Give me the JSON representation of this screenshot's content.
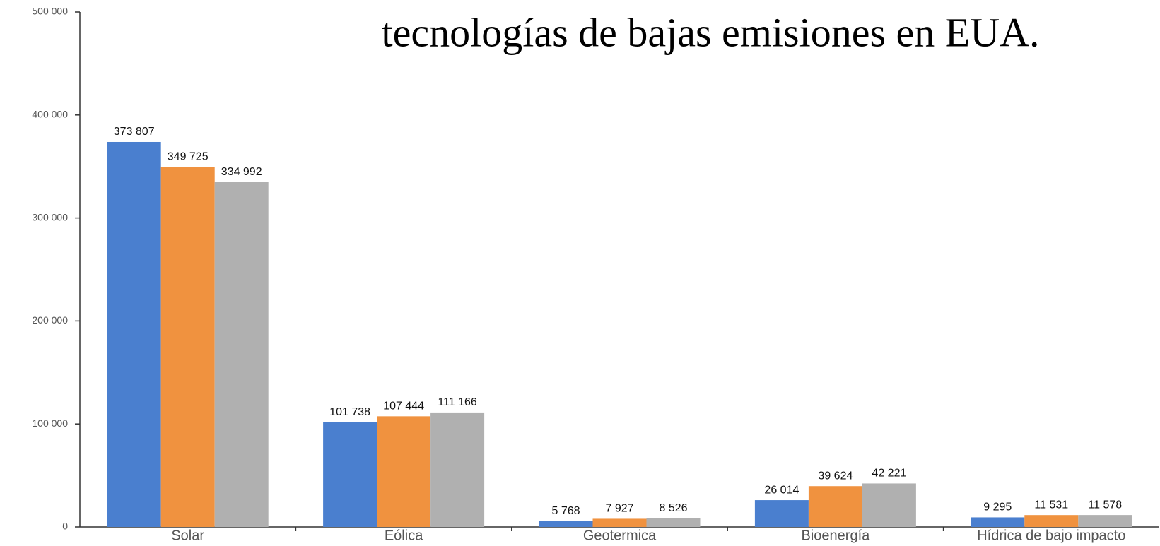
{
  "chart_data": {
    "type": "bar",
    "title": "tecnologías de bajas emisiones en EUA.",
    "categories": [
      "Solar",
      "Eólica",
      "Geotermica",
      "Bioenergía",
      "Hídrica de bajo impacto"
    ],
    "series": [
      {
        "color": "#4a7fcf",
        "values": [
          373807,
          101738,
          5768,
          26014,
          9295
        ],
        "value_labels": [
          "373 807",
          "101 738",
          "5 768",
          "26 014",
          "9 295"
        ]
      },
      {
        "color": "#f0923f",
        "values": [
          349725,
          107444,
          7927,
          39624,
          11531
        ],
        "value_labels": [
          "349 725",
          "107 444",
          "7 927",
          "39 624",
          "11 531"
        ]
      },
      {
        "color": "#b0b0b0",
        "values": [
          334992,
          111166,
          8526,
          42221,
          11578
        ],
        "value_labels": [
          "334 992",
          "111 166",
          "8 526",
          "42 221",
          "11 578"
        ]
      }
    ],
    "ylim": [
      0,
      500000
    ],
    "yticks": [
      {
        "value": 0,
        "label": "0"
      },
      {
        "value": 100000,
        "label": "100 000"
      },
      {
        "value": 200000,
        "label": "200 000"
      },
      {
        "value": 300000,
        "label": "300 000"
      },
      {
        "value": 400000,
        "label": "400 000"
      },
      {
        "value": 500000,
        "label": "500 000"
      }
    ],
    "grid": false
  }
}
